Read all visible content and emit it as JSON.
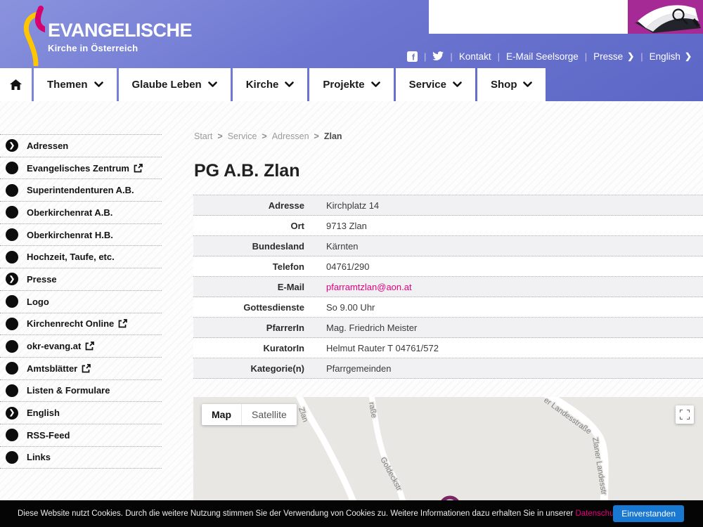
{
  "header": {
    "brand": {
      "title": "EVANGELISCHE",
      "subtitle": "Kirche in Österreich"
    },
    "utility": {
      "kontakt": "Kontakt",
      "email_seelsorge": "E-Mail Seelsorge",
      "presse": "Presse",
      "english": "English"
    }
  },
  "nav": {
    "items": [
      "Themen",
      "Glaube Leben",
      "Kirche",
      "Projekte",
      "Service",
      "Shop"
    ]
  },
  "breadcrumb": {
    "items": [
      "Start",
      "Service",
      "Adressen",
      "Zlan"
    ]
  },
  "content": {
    "title": "PG A.B. Zlan",
    "details": [
      {
        "label": "Adresse",
        "value": "Kirchplatz 14",
        "is_link": false
      },
      {
        "label": "Ort",
        "value": "9713 Zlan",
        "is_link": false
      },
      {
        "label": "Bundesland",
        "value": "Kärnten",
        "is_link": false
      },
      {
        "label": "Telefon",
        "value": "04761/290",
        "is_link": false
      },
      {
        "label": "E-Mail",
        "value": "pfarramtzlan@aon.at",
        "is_link": true
      },
      {
        "label": "Gottesdienste",
        "value": "So 9.00 Uhr",
        "is_link": false
      },
      {
        "label": "PfarrerIn",
        "value": "Mag. Friedrich Meister",
        "is_link": false
      },
      {
        "label": "KuratorIn",
        "value": "Helmut Rauter T 04761/572",
        "is_link": false
      },
      {
        "label": "Kategorie(n)",
        "value": "Pfarrgemeinden",
        "is_link": false
      }
    ]
  },
  "sidebar": {
    "items": [
      {
        "label": "Adressen",
        "icon": "chevron",
        "external": false
      },
      {
        "label": "Evangelisches Zentrum",
        "icon": "dot",
        "external": true
      },
      {
        "label": "Superintendenturen A.B.",
        "icon": "dot",
        "external": false
      },
      {
        "label": "Oberkirchenrat A.B.",
        "icon": "dot",
        "external": false
      },
      {
        "label": "Oberkirchenrat H.B.",
        "icon": "dot",
        "external": false
      },
      {
        "label": "Hochzeit, Taufe, etc.",
        "icon": "dot",
        "external": false
      },
      {
        "label": "Presse",
        "icon": "chevron",
        "external": false
      },
      {
        "label": "Logo",
        "icon": "dot",
        "external": false
      },
      {
        "label": "Kirchenrecht Online",
        "icon": "dot",
        "external": true
      },
      {
        "label": "okr-evang.at",
        "icon": "dot",
        "external": true
      },
      {
        "label": "Amtsblätter",
        "icon": "dot",
        "external": true
      },
      {
        "label": "Listen & Formulare",
        "icon": "dot",
        "external": false
      },
      {
        "label": "English",
        "icon": "chevron",
        "external": false
      },
      {
        "label": "RSS-Feed",
        "icon": "dot",
        "external": false
      },
      {
        "label": "Links",
        "icon": "dot",
        "external": false
      }
    ]
  },
  "map": {
    "controls": {
      "map": "Map",
      "satellite": "Satellite"
    },
    "road_labels": {
      "zlan": "Zlan",
      "strasse_partial": "raße",
      "goldeckstr": "Goldeckstr",
      "landesstrasse_upper": "er Landesstraße",
      "landesstrasse_lower": "Zlaner Landesstr"
    }
  },
  "cookie_bar": {
    "text": "Diese Website nutzt Cookies. Durch die weitere Nutzung stimmen Sie der Verwendung von Cookies zu. Weitere Informationen dazu erhalten Sie in unserer ",
    "link_label": "Datenschutz-Erklärung",
    "suffix": ".",
    "button_label": "Einverstanden"
  },
  "colors": {
    "accent_pink": "#e5007e",
    "header_purple": "#6770cd",
    "cookie_button_blue": "#1878d2",
    "marker_purple": "#7b2563"
  }
}
